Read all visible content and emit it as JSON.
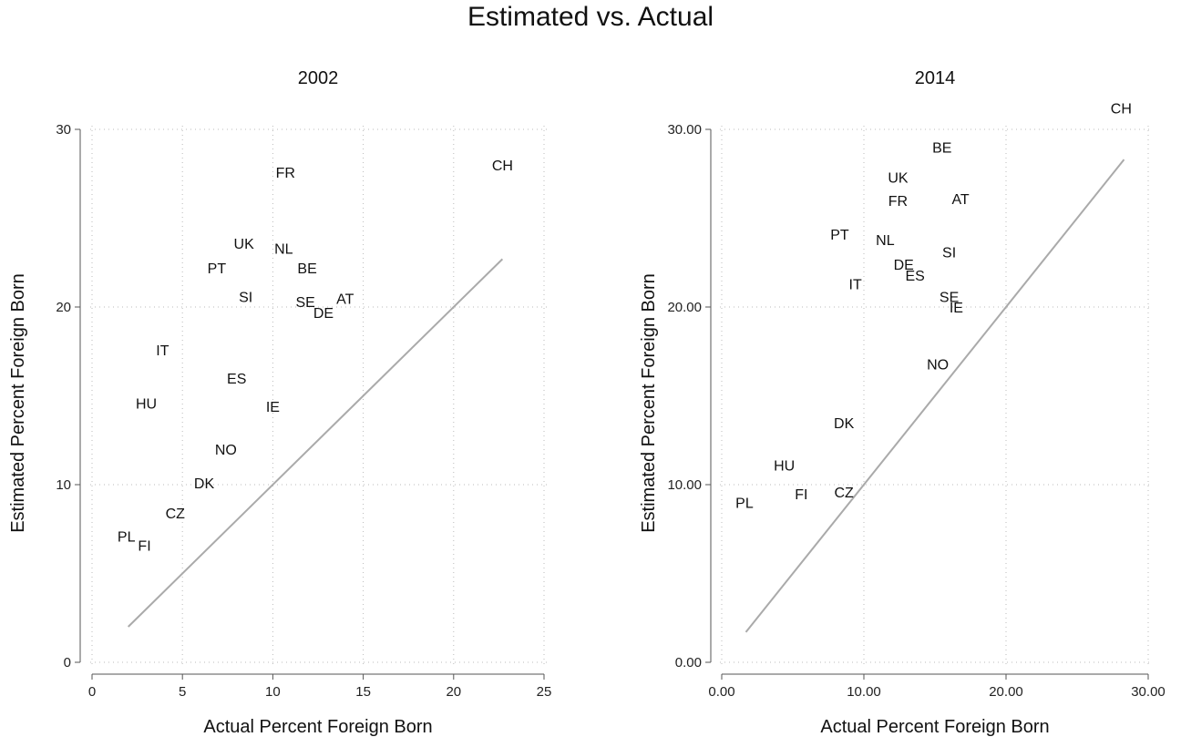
{
  "title": "Estimated vs. Actual",
  "chart_data": [
    {
      "type": "scatter",
      "title": "2002",
      "xlabel": "Actual Percent Foreign Born",
      "ylabel": "Estimated Percent Foreign Born",
      "xlim": [
        0,
        25
      ],
      "ylim": [
        0,
        30
      ],
      "xticks": [
        "0",
        "5",
        "10",
        "15",
        "20",
        "25"
      ],
      "yticks": [
        "0",
        "10",
        "20",
        "30"
      ],
      "grid": true,
      "reference_line": {
        "x": [
          2,
          22.7
        ],
        "y": [
          2,
          22.7
        ]
      },
      "points": [
        {
          "label": "CH",
          "x": 22.7,
          "y": 28.0
        },
        {
          "label": "FR",
          "x": 10.7,
          "y": 27.6
        },
        {
          "label": "UK",
          "x": 8.4,
          "y": 23.6
        },
        {
          "label": "NL",
          "x": 10.6,
          "y": 23.3
        },
        {
          "label": "PT",
          "x": 6.9,
          "y": 22.2
        },
        {
          "label": "BE",
          "x": 11.9,
          "y": 22.2
        },
        {
          "label": "SI",
          "x": 8.5,
          "y": 20.6
        },
        {
          "label": "AT",
          "x": 14.0,
          "y": 20.5
        },
        {
          "label": "SE",
          "x": 11.8,
          "y": 20.3
        },
        {
          "label": "DE",
          "x": 12.8,
          "y": 19.7
        },
        {
          "label": "IT",
          "x": 3.9,
          "y": 17.6
        },
        {
          "label": "ES",
          "x": 8.0,
          "y": 16.0
        },
        {
          "label": "HU",
          "x": 3.0,
          "y": 14.6
        },
        {
          "label": "IE",
          "x": 10.0,
          "y": 14.4
        },
        {
          "label": "NO",
          "x": 7.4,
          "y": 12.0
        },
        {
          "label": "DK",
          "x": 6.2,
          "y": 10.1
        },
        {
          "label": "CZ",
          "x": 4.6,
          "y": 8.4
        },
        {
          "label": "PL",
          "x": 1.9,
          "y": 7.1
        },
        {
          "label": "FI",
          "x": 2.9,
          "y": 6.6
        }
      ]
    },
    {
      "type": "scatter",
      "title": "2014",
      "xlabel": "Actual Percent Foreign Born",
      "ylabel": "Estimated Percent Foreign Born",
      "xlim": [
        0,
        30
      ],
      "ylim": [
        0,
        30
      ],
      "xticks": [
        "0.00",
        "10.00",
        "20.00",
        "30.00"
      ],
      "yticks": [
        "0.00",
        "10.00",
        "20.00",
        "30.00"
      ],
      "grid": true,
      "reference_line": {
        "x": [
          1.7,
          28.3
        ],
        "y": [
          1.7,
          28.3
        ]
      },
      "points": [
        {
          "label": "CH",
          "x": 28.1,
          "y": 31.2
        },
        {
          "label": "BE",
          "x": 15.5,
          "y": 29.0
        },
        {
          "label": "UK",
          "x": 12.4,
          "y": 27.3
        },
        {
          "label": "FR",
          "x": 12.4,
          "y": 26.0
        },
        {
          "label": "AT",
          "x": 16.8,
          "y": 26.1
        },
        {
          "label": "PT",
          "x": 8.3,
          "y": 24.1
        },
        {
          "label": "NL",
          "x": 11.5,
          "y": 23.8
        },
        {
          "label": "SI",
          "x": 16.0,
          "y": 23.1
        },
        {
          "label": "DE",
          "x": 12.8,
          "y": 22.4
        },
        {
          "label": "ES",
          "x": 13.6,
          "y": 21.8
        },
        {
          "label": "IT",
          "x": 9.4,
          "y": 21.3
        },
        {
          "label": "SE",
          "x": 16.0,
          "y": 20.6
        },
        {
          "label": "IE",
          "x": 16.5,
          "y": 20.0
        },
        {
          "label": "NO",
          "x": 15.2,
          "y": 16.8
        },
        {
          "label": "DK",
          "x": 8.6,
          "y": 13.5
        },
        {
          "label": "HU",
          "x": 4.4,
          "y": 11.1
        },
        {
          "label": "FI",
          "x": 5.6,
          "y": 9.5
        },
        {
          "label": "CZ",
          "x": 8.6,
          "y": 9.6
        },
        {
          "label": "PL",
          "x": 1.6,
          "y": 9.0
        }
      ]
    }
  ]
}
